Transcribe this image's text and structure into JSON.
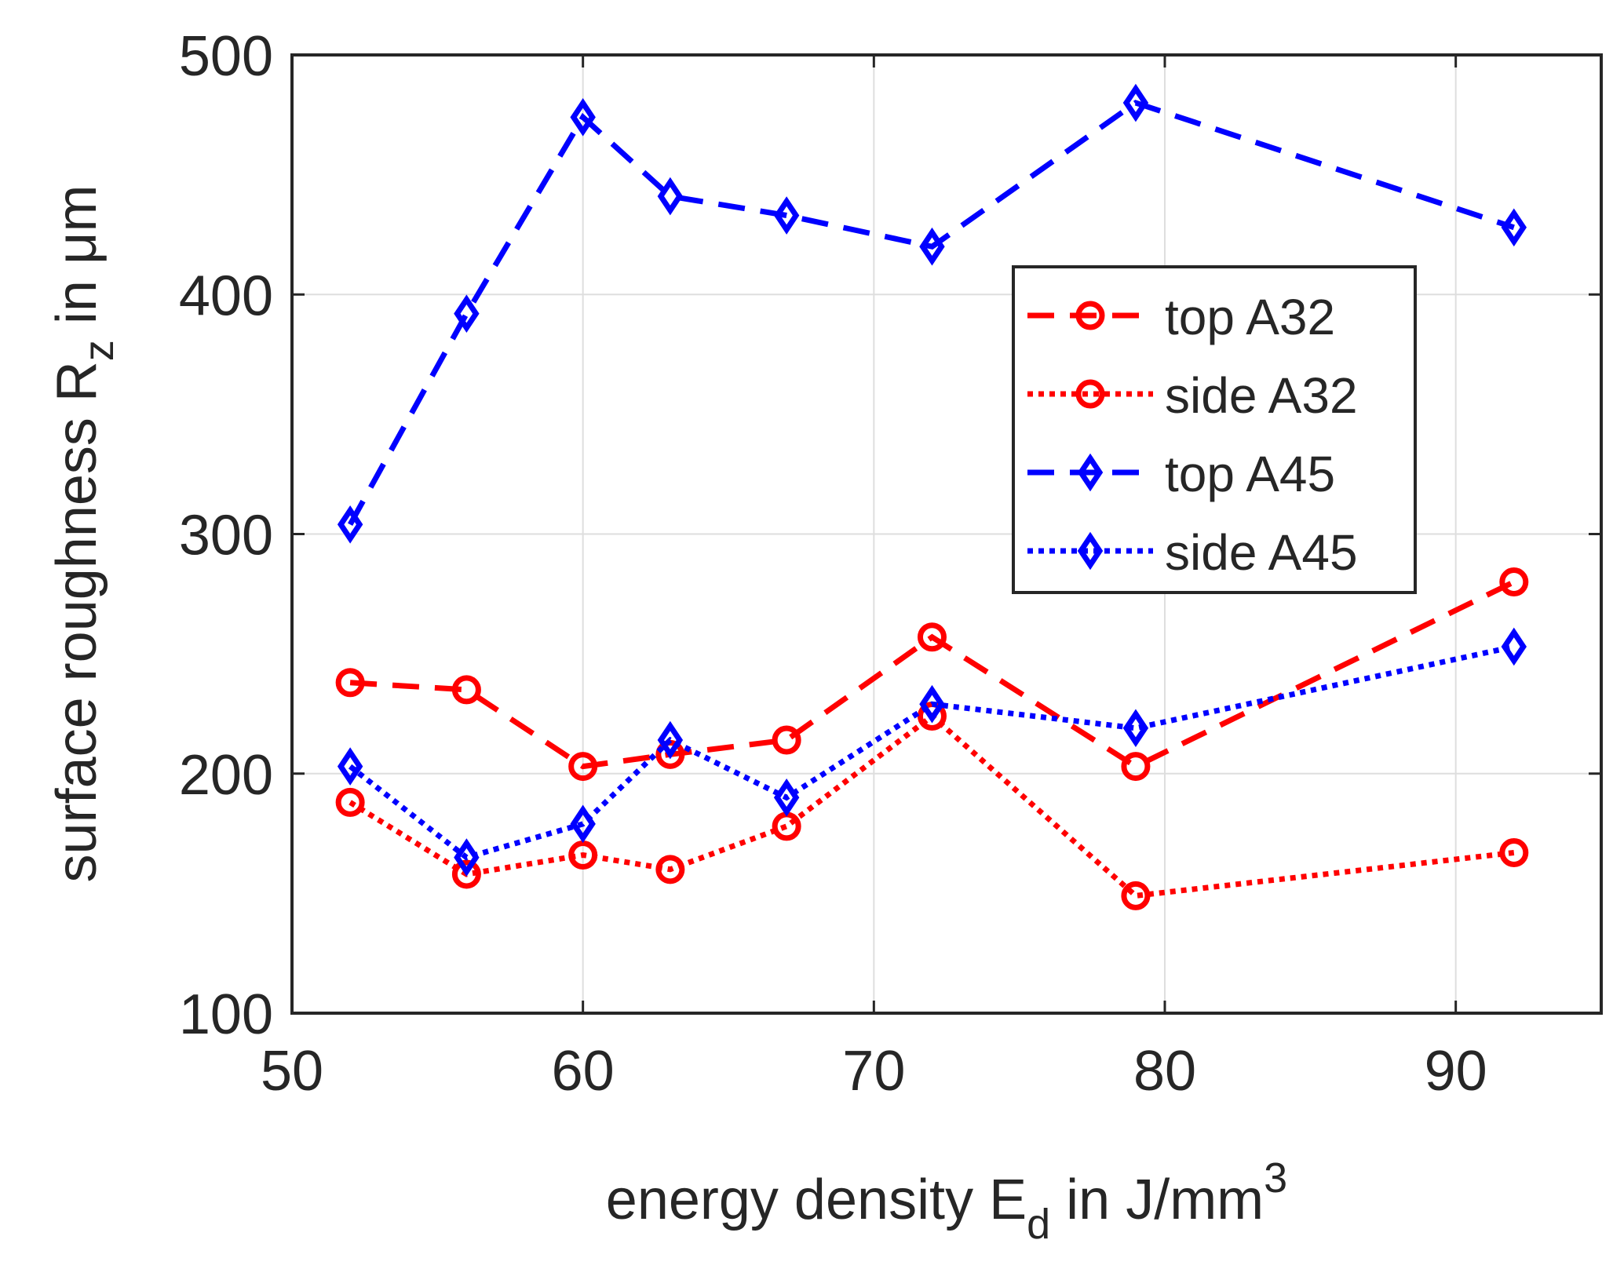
{
  "chart_data": {
    "type": "line",
    "title": "",
    "xlabel": {
      "main": "energy density E",
      "sub": "d",
      "rest": " in J/mm",
      "sup": "3"
    },
    "ylabel": {
      "main": "surface roughness R",
      "sub": "z",
      "rest": " in μm"
    },
    "xlim": [
      50,
      95
    ],
    "ylim": [
      100,
      500
    ],
    "xticks": [
      50,
      60,
      70,
      80,
      90
    ],
    "yticks": [
      100,
      200,
      300,
      400,
      500
    ],
    "xtick_labels": [
      "50",
      "60",
      "70",
      "80",
      "90"
    ],
    "ytick_labels": [
      "100",
      "200",
      "300",
      "400",
      "500"
    ],
    "grid": true,
    "legend_position": "upper-right",
    "x": [
      52,
      56,
      60,
      63,
      67,
      72,
      79,
      92
    ],
    "series": [
      {
        "name": "top A32",
        "color": "#ff0000",
        "line": "dashed",
        "marker": "circle",
        "values": [
          238,
          235,
          203,
          208,
          214,
          257,
          203,
          280
        ]
      },
      {
        "name": "side A32",
        "color": "#ff0000",
        "line": "dotted",
        "marker": "circle",
        "values": [
          188,
          158,
          166,
          160,
          178,
          224,
          149,
          167
        ]
      },
      {
        "name": "top A45",
        "color": "#0000ff",
        "line": "dashed",
        "marker": "diamond",
        "values": [
          304,
          392,
          474,
          441,
          433,
          420,
          480,
          428
        ]
      },
      {
        "name": "side A45",
        "color": "#0000ff",
        "line": "dotted",
        "marker": "diamond",
        "values": [
          203,
          165,
          179,
          214,
          190,
          229,
          219,
          253
        ]
      }
    ]
  }
}
